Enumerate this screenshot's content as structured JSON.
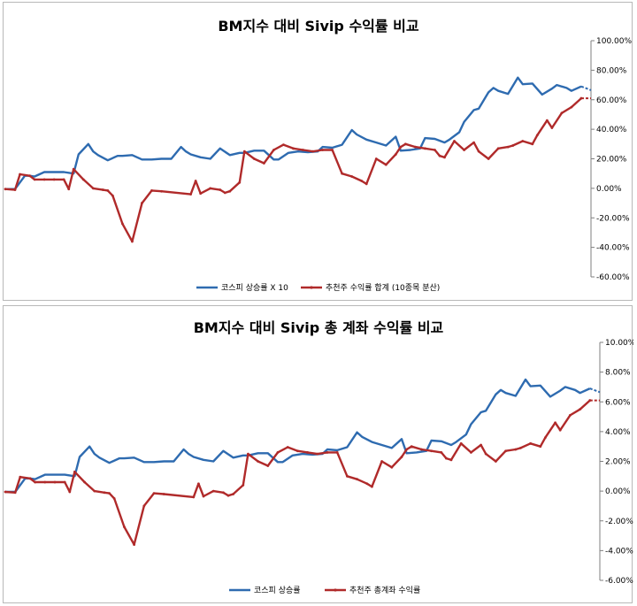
{
  "chart_data": [
    {
      "type": "line",
      "title": "BM지수 대비 Sivip 수익률 비교",
      "ylim": [
        -60,
        100
      ],
      "yticks": [
        "100.00%",
        "80.00%",
        "60.00%",
        "40.00%",
        "20.00%",
        "0.00%",
        "-20.00%",
        "-40.00%",
        "-60.00%"
      ],
      "legend": "bottom",
      "grid": false,
      "series": [
        {
          "name": "코스피 상승률 X 10",
          "color": "#2e6bb0",
          "x": [
            0,
            2,
            4,
            5,
            6,
            8,
            10,
            12,
            14,
            15,
            17,
            18,
            19,
            21,
            23,
            24,
            26,
            28,
            30,
            32,
            34,
            36,
            37,
            38,
            40,
            42,
            44,
            46,
            48,
            49,
            51,
            53,
            55,
            56,
            58,
            60,
            62,
            64,
            65,
            67,
            69,
            71,
            72,
            74,
            76,
            78,
            80,
            81,
            83,
            85,
            86,
            88,
            90,
            91,
            93,
            94,
            96,
            97,
            99,
            100,
            101,
            103,
            105,
            106,
            108,
            110,
            112,
            113,
            115,
            116,
            118
          ],
          "values": [
            -0.5,
            -0.5,
            8.5,
            8.5,
            8,
            11,
            11,
            11,
            10,
            23,
            30,
            25,
            22.5,
            19,
            22,
            22,
            22.5,
            19.5,
            19.5,
            20,
            20,
            28,
            25,
            23,
            21,
            20,
            27,
            22.5,
            24,
            24,
            25.5,
            25.5,
            19.5,
            19.5,
            24,
            25,
            24.5,
            25,
            28,
            27.5,
            29.5,
            39.5,
            36.5,
            33,
            31,
            29,
            35,
            25.5,
            26,
            27,
            34,
            33.5,
            31,
            33,
            38,
            45,
            53,
            54,
            65,
            68,
            66,
            64,
            75,
            70.5,
            71,
            63.5,
            67.5,
            70,
            68,
            66,
            69
          ],
          "dash_end": [
            118,
            120
          ],
          "dash_values": [
            69,
            66.5
          ]
        },
        {
          "name": "추천주 수익률 합계 (10종목 분산)",
          "color": "#b02a2a",
          "x": [
            0,
            2,
            3,
            5,
            6,
            8,
            10,
            12,
            13,
            14,
            16,
            18,
            20,
            21,
            22,
            24,
            26,
            28,
            30,
            32,
            38,
            39,
            40,
            42,
            44,
            45,
            46,
            48,
            49,
            51,
            53,
            55,
            57,
            59,
            61,
            63,
            65,
            67,
            69,
            71,
            73,
            74,
            76,
            78,
            80,
            81,
            82,
            84,
            86,
            88,
            89,
            90,
            92,
            94,
            96,
            97,
            99,
            101,
            103,
            104,
            106,
            108,
            109,
            111,
            112,
            114,
            116,
            118
          ],
          "values": [
            -0.5,
            -1,
            9.5,
            8.5,
            6,
            6,
            6,
            6,
            -0.5,
            13,
            6,
            0,
            -1,
            -1.5,
            -5,
            -24,
            -36,
            -10,
            -1.5,
            -2,
            -4,
            5,
            -3.5,
            0,
            -1,
            -3,
            -2,
            4,
            25,
            20,
            17,
            26,
            29.5,
            27,
            26,
            25,
            26,
            26,
            10,
            8,
            5,
            3,
            20,
            16,
            23,
            28,
            30,
            28,
            27,
            26,
            22,
            21,
            32,
            26,
            31,
            25,
            20,
            27,
            28,
            29,
            32,
            30,
            36,
            46,
            41,
            51,
            55,
            61
          ],
          "dash_end": [
            118,
            120
          ],
          "dash_values": [
            61,
            61
          ]
        }
      ]
    },
    {
      "type": "line",
      "title": "BM지수 대비 Sivip 총 계좌 수익률 비교",
      "ylim": [
        -6,
        10
      ],
      "yticks": [
        "10.00%",
        "8.00%",
        "6.00%",
        "4.00%",
        "2.00%",
        "0.00%",
        "-2.00%",
        "-4.00%",
        "-6.00%"
      ],
      "legend": "bottom",
      "grid": false,
      "series": [
        {
          "name": "코스피 상승률",
          "color": "#2e6bb0",
          "x": [
            0,
            2,
            4,
            5,
            6,
            8,
            10,
            12,
            14,
            15,
            17,
            18,
            19,
            21,
            23,
            24,
            26,
            28,
            30,
            32,
            34,
            36,
            37,
            38,
            40,
            42,
            44,
            46,
            48,
            49,
            51,
            53,
            55,
            56,
            58,
            60,
            62,
            64,
            65,
            67,
            69,
            71,
            72,
            74,
            76,
            78,
            80,
            81,
            83,
            85,
            86,
            88,
            90,
            91,
            93,
            94,
            96,
            97,
            99,
            100,
            101,
            103,
            105,
            106,
            108,
            110,
            112,
            113,
            115,
            116,
            118
          ],
          "values": [
            -0.05,
            -0.05,
            0.85,
            0.85,
            0.8,
            1.1,
            1.1,
            1.1,
            1.0,
            2.3,
            3.0,
            2.5,
            2.25,
            1.9,
            2.2,
            2.2,
            2.25,
            1.95,
            1.95,
            2.0,
            2.0,
            2.8,
            2.5,
            2.3,
            2.1,
            2.0,
            2.7,
            2.25,
            2.4,
            2.4,
            2.55,
            2.55,
            1.95,
            1.95,
            2.4,
            2.5,
            2.45,
            2.5,
            2.8,
            2.75,
            2.95,
            3.95,
            3.65,
            3.3,
            3.1,
            2.9,
            3.5,
            2.55,
            2.6,
            2.7,
            3.4,
            3.35,
            3.1,
            3.3,
            3.8,
            4.5,
            5.3,
            5.4,
            6.5,
            6.8,
            6.6,
            6.4,
            7.5,
            7.05,
            7.1,
            6.35,
            6.75,
            7.0,
            6.8,
            6.6,
            6.9
          ],
          "dash_end": [
            118,
            120
          ],
          "dash_values": [
            6.9,
            6.65
          ]
        },
        {
          "name": "추천주 총계좌 수익률",
          "color": "#b02a2a",
          "x": [
            0,
            2,
            3,
            5,
            6,
            8,
            10,
            12,
            13,
            14,
            16,
            18,
            20,
            21,
            22,
            24,
            26,
            28,
            30,
            32,
            38,
            39,
            40,
            42,
            44,
            45,
            46,
            48,
            49,
            51,
            53,
            55,
            57,
            59,
            61,
            63,
            65,
            67,
            69,
            71,
            73,
            74,
            76,
            78,
            80,
            81,
            82,
            84,
            86,
            88,
            89,
            90,
            92,
            94,
            96,
            97,
            99,
            101,
            103,
            104,
            106,
            108,
            109,
            111,
            112,
            114,
            116,
            118
          ],
          "values": [
            -0.05,
            -0.1,
            0.95,
            0.85,
            0.6,
            0.6,
            0.6,
            0.6,
            -0.05,
            1.3,
            0.6,
            0.0,
            -0.1,
            -0.15,
            -0.5,
            -2.4,
            -3.6,
            -1.0,
            -0.15,
            -0.2,
            -0.4,
            0.5,
            -0.35,
            0.0,
            -0.1,
            -0.3,
            -0.2,
            0.4,
            2.5,
            2.0,
            1.7,
            2.6,
            2.95,
            2.7,
            2.6,
            2.5,
            2.6,
            2.6,
            1.0,
            0.8,
            0.5,
            0.3,
            2.0,
            1.6,
            2.3,
            2.8,
            3.0,
            2.8,
            2.7,
            2.6,
            2.2,
            2.1,
            3.2,
            2.6,
            3.1,
            2.5,
            2.0,
            2.7,
            2.8,
            2.9,
            3.2,
            3.0,
            3.6,
            4.6,
            4.1,
            5.1,
            5.5,
            6.1
          ],
          "dash_end": [
            118,
            120
          ],
          "dash_values": [
            6.1,
            6.1
          ]
        }
      ]
    }
  ]
}
